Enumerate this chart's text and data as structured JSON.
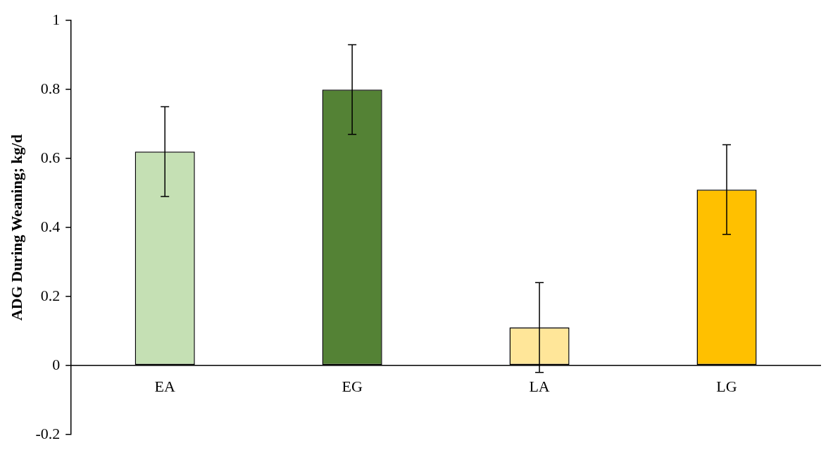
{
  "chart_data": {
    "type": "bar",
    "ylabel": "ADG During Weaning; kg/d",
    "categories": [
      "EA",
      "EG",
      "LA",
      "LG"
    ],
    "values": [
      0.62,
      0.8,
      0.11,
      0.51
    ],
    "colors": [
      "#c5e0b4",
      "#548235",
      "#ffe699",
      "#ffc000"
    ],
    "errors": [
      0.13,
      0.13,
      0.13,
      0.13
    ],
    "ylim": [
      -0.2,
      1
    ],
    "yticks": [
      -0.2,
      0,
      0.2,
      0.4,
      0.6,
      0.8,
      1
    ],
    "grid": false,
    "legend": false
  }
}
